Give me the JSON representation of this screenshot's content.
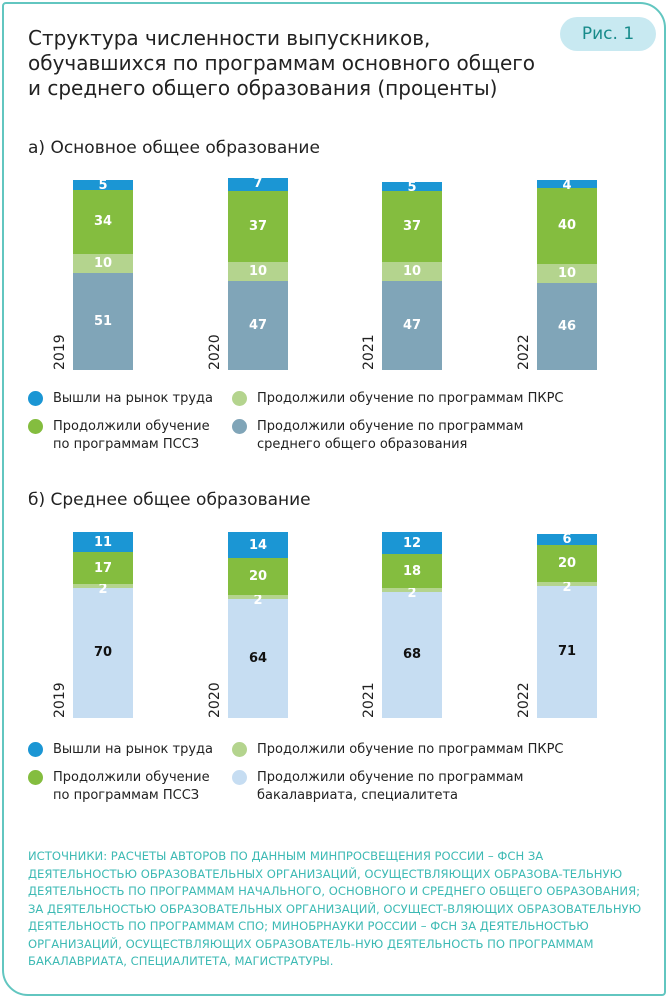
{
  "figure_label": "Рис. 1",
  "title": "Структура численности выпускников, обучавшихся по программам основного общего и среднего общего образования (проценты)",
  "colors": {
    "labor": "#1b96d4",
    "pssz": "#84bd3f",
    "pkrs": "#b4d48e",
    "school": "#80a5b8",
    "bachelor": "#c6ddf2",
    "frame": "#62c6c0",
    "source": "#3dbab4"
  },
  "chart_data": [
    {
      "type": "bar",
      "stacked": true,
      "subtitle": "а) Основное общее образование",
      "categories": [
        "2019",
        "2020",
        "2021",
        "2022"
      ],
      "ylim": [
        0,
        100
      ],
      "series": [
        {
          "name": "Продолжили обучение по программам среднего общего образования",
          "color_key": "school",
          "label_color": "#ffffff",
          "values": [
            51,
            47,
            47,
            46
          ]
        },
        {
          "name": "Продолжили обучение по программам ПКРС",
          "color_key": "pkrs",
          "label_color": "#ffffff",
          "values": [
            10,
            10,
            10,
            10
          ]
        },
        {
          "name": "Продолжили обучение по программам ПССЗ",
          "color_key": "pssz",
          "label_color": "#ffffff",
          "values": [
            34,
            37,
            37,
            40
          ]
        },
        {
          "name": "Вышли на рынок труда",
          "color_key": "labor",
          "label_color": "#ffffff",
          "values": [
            5,
            7,
            5,
            4
          ]
        }
      ],
      "legend": [
        {
          "label": "Вышли на рынок труда",
          "color_key": "labor"
        },
        {
          "label": "Продолжили обучение по программам ПКРС",
          "color_key": "pkrs"
        },
        {
          "label": "Продолжили обучение\nпо программам ПССЗ",
          "color_key": "pssz"
        },
        {
          "label": "Продолжили обучение по программам\nсреднего общего образования",
          "color_key": "school"
        }
      ]
    },
    {
      "type": "bar",
      "stacked": true,
      "subtitle": "б) Среднее общее образование",
      "categories": [
        "2019",
        "2020",
        "2021",
        "2022"
      ],
      "ylim": [
        0,
        100
      ],
      "series": [
        {
          "name": "Продолжили обучение по программам бакалавриата, специалитета",
          "color_key": "bachelor",
          "label_color": "#111111",
          "values": [
            70,
            64,
            68,
            71
          ]
        },
        {
          "name": "Продолжили обучение по программам ПКРС",
          "color_key": "pkrs",
          "label_color": "#ffffff",
          "values": [
            2,
            2,
            2,
            2
          ]
        },
        {
          "name": "Продолжили обучение по программам ПССЗ",
          "color_key": "pssz",
          "label_color": "#ffffff",
          "values": [
            17,
            20,
            18,
            20
          ]
        },
        {
          "name": "Вышли на рынок труда",
          "color_key": "labor",
          "label_color": "#ffffff",
          "values": [
            11,
            14,
            12,
            6
          ]
        }
      ],
      "legend": [
        {
          "label": "Вышли на рынок труда",
          "color_key": "labor"
        },
        {
          "label": "Продолжили обучение по программам ПКРС",
          "color_key": "pkrs"
        },
        {
          "label": "Продолжили обучение\nпо программам ПССЗ",
          "color_key": "pssz"
        },
        {
          "label": "Продолжили обучение по программам\nбакалавриата, специалитета",
          "color_key": "bachelor"
        }
      ]
    }
  ],
  "source": "Источники: расчеты авторов по данным Минпросвещения России – ФСН за деятельностью образовательных организаций, осуществляющих образова-тельную деятельность по программам начального, основного и среднего общего образования; за деятельностью образовательных организаций, осущест-вляющих образовательную деятельность по программам СПО; Минобрнауки России – ФСН за деятельностью организаций, осуществляющих образователь-ную деятельность по программам бакалавриата, специалитета, магистратуры."
}
